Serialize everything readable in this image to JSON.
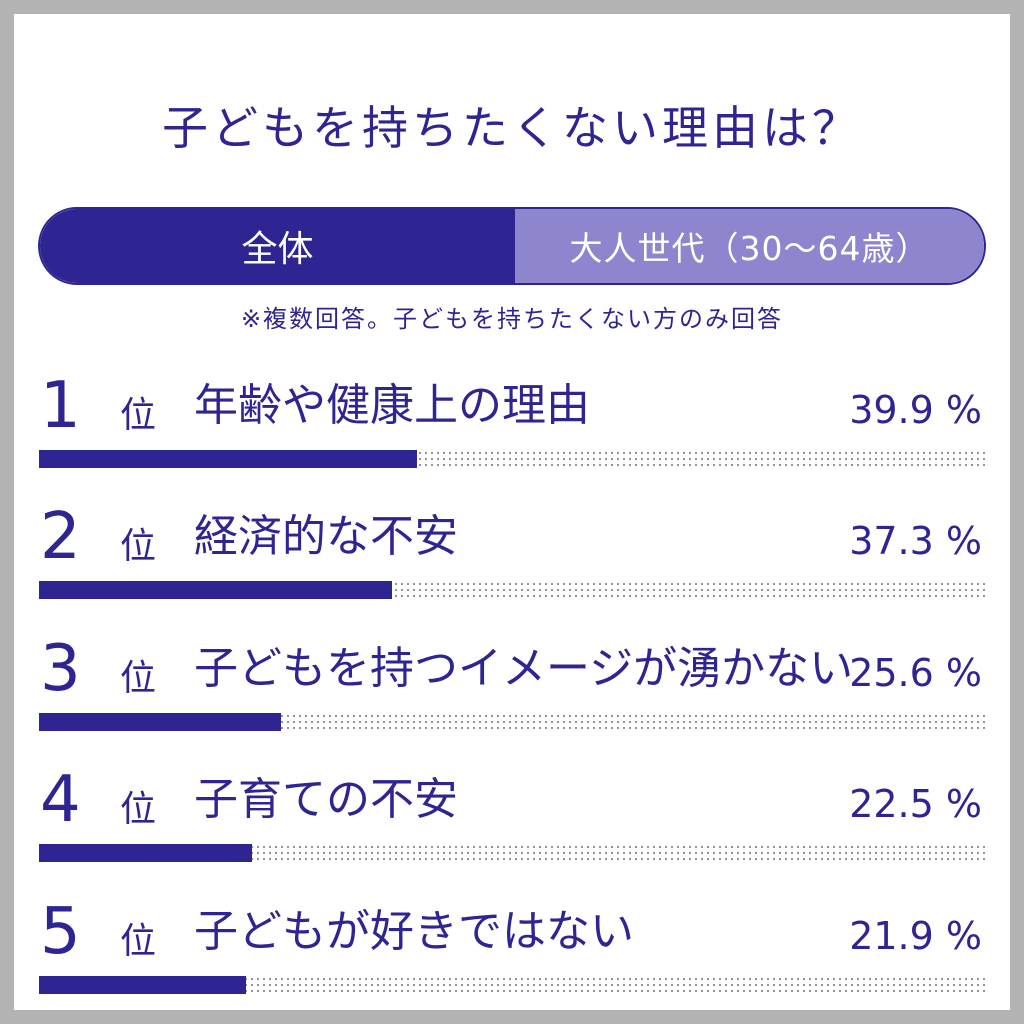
{
  "title": "子どもを持ちたくない理由は？",
  "tabs": [
    {
      "label": "全体",
      "active": true
    },
    {
      "label": "大人世代（30〜64歳）",
      "active": false
    }
  ],
  "note": "※複数回答。子どもを持ちたくない方のみ回答",
  "rank_unit": "位",
  "colors": {
    "accent": "#2e2593",
    "tab_inactive": "#8e85cf",
    "track_dots": "#8f8f8f"
  },
  "chart_data": {
    "type": "bar",
    "orientation": "horizontal",
    "title": "子どもを持ちたくない理由は？",
    "xlim": [
      0,
      100
    ],
    "categories": [
      "年齢や健康上の理由",
      "経済的な不安",
      "子どもを持つイメージが湧かない",
      "子育ての不安",
      "子どもが好きではない"
    ],
    "ranks": [
      "1",
      "2",
      "3",
      "4",
      "5"
    ],
    "values": [
      39.9,
      37.3,
      25.6,
      22.5,
      21.9
    ],
    "value_labels": [
      "39.9 %",
      "37.3 %",
      "25.6 %",
      "22.5 %",
      "21.9 %"
    ]
  }
}
